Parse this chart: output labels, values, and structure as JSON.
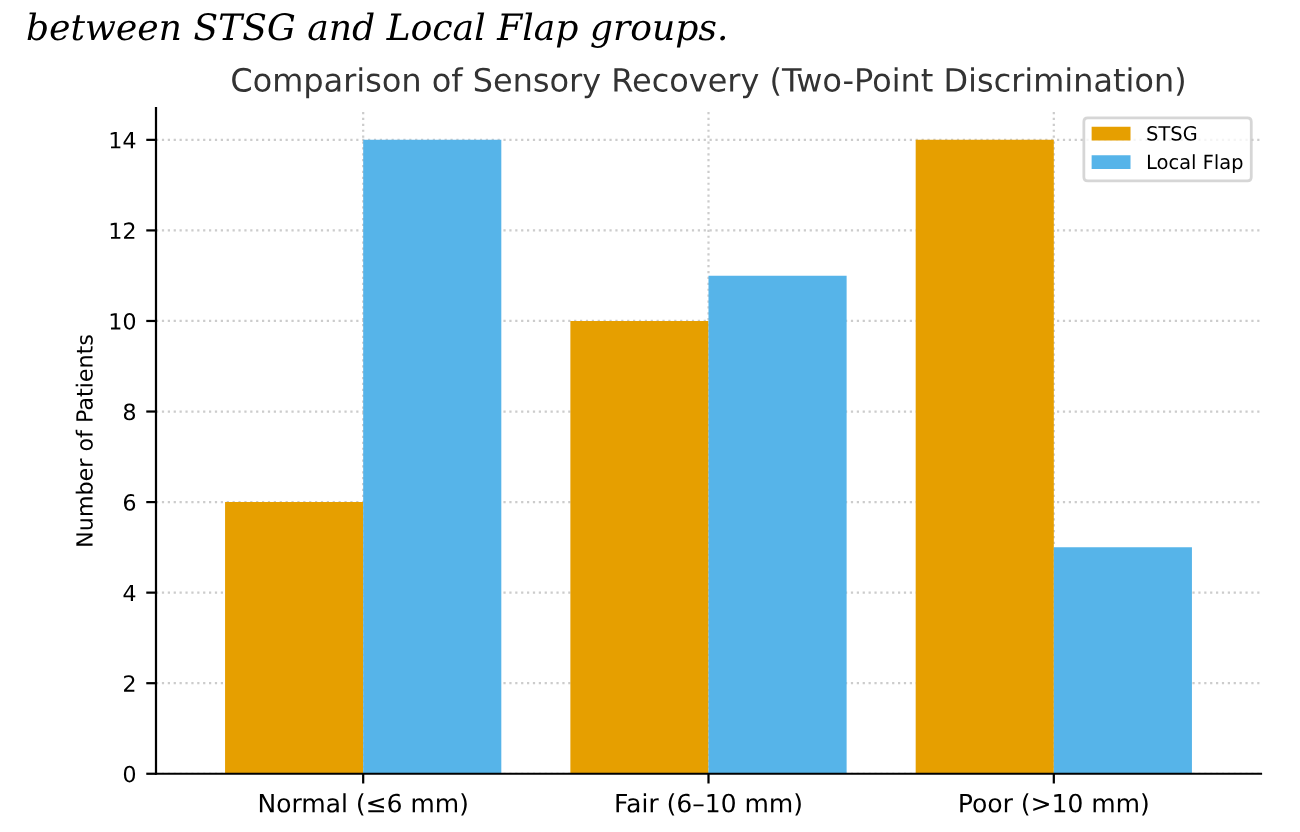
{
  "chart_data": {
    "type": "bar",
    "title": "Comparison of Sensory Recovery (Two-Point Discrimination)",
    "ylabel": "Number of Patients",
    "annotations": [
      "between STSG and Local Flap groups."
    ],
    "categories": [
      "Normal (≤6 mm)",
      "Fair (6–10 mm)",
      "Poor (>10 mm)"
    ],
    "series": [
      {
        "name": "STSG",
        "color": "#e69f00",
        "values": [
          6,
          10,
          14
        ]
      },
      {
        "name": "Local Flap",
        "color": "#56b4e9",
        "values": [
          14,
          11,
          5
        ]
      }
    ],
    "ylim": [
      0,
      14.7
    ],
    "yticks": [
      0,
      2,
      4,
      6,
      8,
      10,
      12,
      14
    ],
    "grid": true,
    "legend": "top right"
  }
}
